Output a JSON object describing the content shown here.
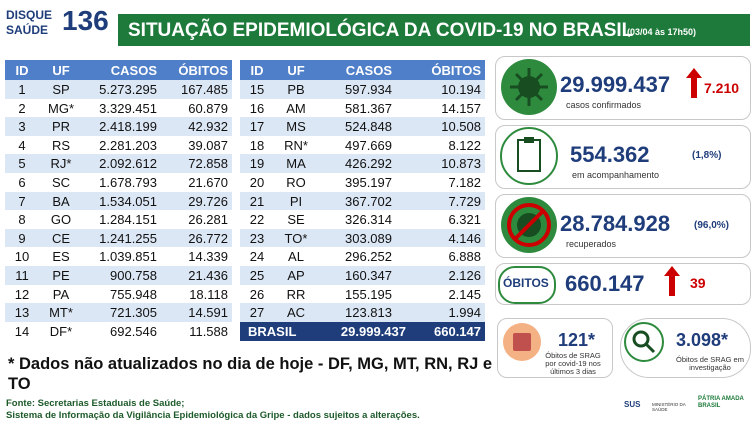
{
  "header": {
    "logo": [
      "DISQUE",
      "SAÚDE",
      "136"
    ],
    "title": "SITUAÇÃO EPIDEMIOLÓGICA DA COVID-19 NO BRASIL",
    "date": "(03/04 às 17h50)"
  },
  "table": {
    "columns": [
      "ID",
      "UF",
      "CASOS",
      "ÓBITOS"
    ],
    "rows": [
      [
        "1",
        "SP",
        "5.273.295",
        "167.485"
      ],
      [
        "2",
        "MG*",
        "3.329.451",
        "60.879"
      ],
      [
        "3",
        "PR",
        "2.418.199",
        "42.932"
      ],
      [
        "4",
        "RS",
        "2.281.203",
        "39.087"
      ],
      [
        "5",
        "RJ*",
        "2.092.612",
        "72.858"
      ],
      [
        "6",
        "SC",
        "1.678.793",
        "21.670"
      ],
      [
        "7",
        "BA",
        "1.534.051",
        "29.726"
      ],
      [
        "8",
        "GO",
        "1.284.151",
        "26.281"
      ],
      [
        "9",
        "CE",
        "1.241.255",
        "26.772"
      ],
      [
        "10",
        "ES",
        "1.039.851",
        "14.339"
      ],
      [
        "11",
        "PE",
        "900.758",
        "21.436"
      ],
      [
        "12",
        "PA",
        "755.948",
        "18.118"
      ],
      [
        "13",
        "MT*",
        "721.305",
        "14.591"
      ],
      [
        "14",
        "DF*",
        "692.546",
        "11.588"
      ],
      [
        "15",
        "PB",
        "597.934",
        "10.194"
      ],
      [
        "16",
        "AM",
        "581.367",
        "14.157"
      ],
      [
        "17",
        "MS",
        "524.848",
        "10.508"
      ],
      [
        "18",
        "RN*",
        "497.669",
        "8.122"
      ],
      [
        "19",
        "MA",
        "426.292",
        "10.873"
      ],
      [
        "20",
        "RO",
        "395.197",
        "7.182"
      ],
      [
        "21",
        "PI",
        "367.702",
        "7.729"
      ],
      [
        "22",
        "SE",
        "326.314",
        "6.321"
      ],
      [
        "23",
        "TO*",
        "303.089",
        "4.146"
      ],
      [
        "24",
        "AL",
        "296.252",
        "6.888"
      ],
      [
        "25",
        "AP",
        "160.347",
        "2.126"
      ],
      [
        "26",
        "RR",
        "155.195",
        "2.145"
      ],
      [
        "27",
        "AC",
        "123.813",
        "1.994"
      ]
    ],
    "total": [
      "BRASIL",
      "29.999.437",
      "660.147"
    ]
  },
  "note": "* Dados não atualizados no dia de hoje - DF, MG, MT, RN, RJ e TO",
  "source": [
    "Fonte: Secretarias Estaduais de Saúde;",
    "Sistema de Informação da Vigilância Epidemiológica da Gripe - dados sujeitos a alterações."
  ],
  "panels": {
    "cases": {
      "value": "29.999.437",
      "increase": "7.210",
      "label": "casos confirmados"
    },
    "monitoring": {
      "value": "554.362",
      "percent": "(1,8%)",
      "label": "em acompanhamento"
    },
    "recovered": {
      "value": "28.784.928",
      "percent": "(96,0%)",
      "label": "recuperados"
    },
    "deaths": {
      "label": "ÓBITOS",
      "value": "660.147",
      "increase": "39"
    },
    "srag_recent": {
      "value": "121*",
      "label": "Óbitos de SRAG por covid-19 nos últimos 3 dias"
    },
    "srag_investigation": {
      "value": "3.098*",
      "label": "Óbitos de SRAG em investigação"
    }
  },
  "footer": {
    "logos": [
      "SUS",
      "MINISTÉRIO DA SAÚDE",
      "PÁTRIA AMADA BRASIL"
    ]
  }
}
